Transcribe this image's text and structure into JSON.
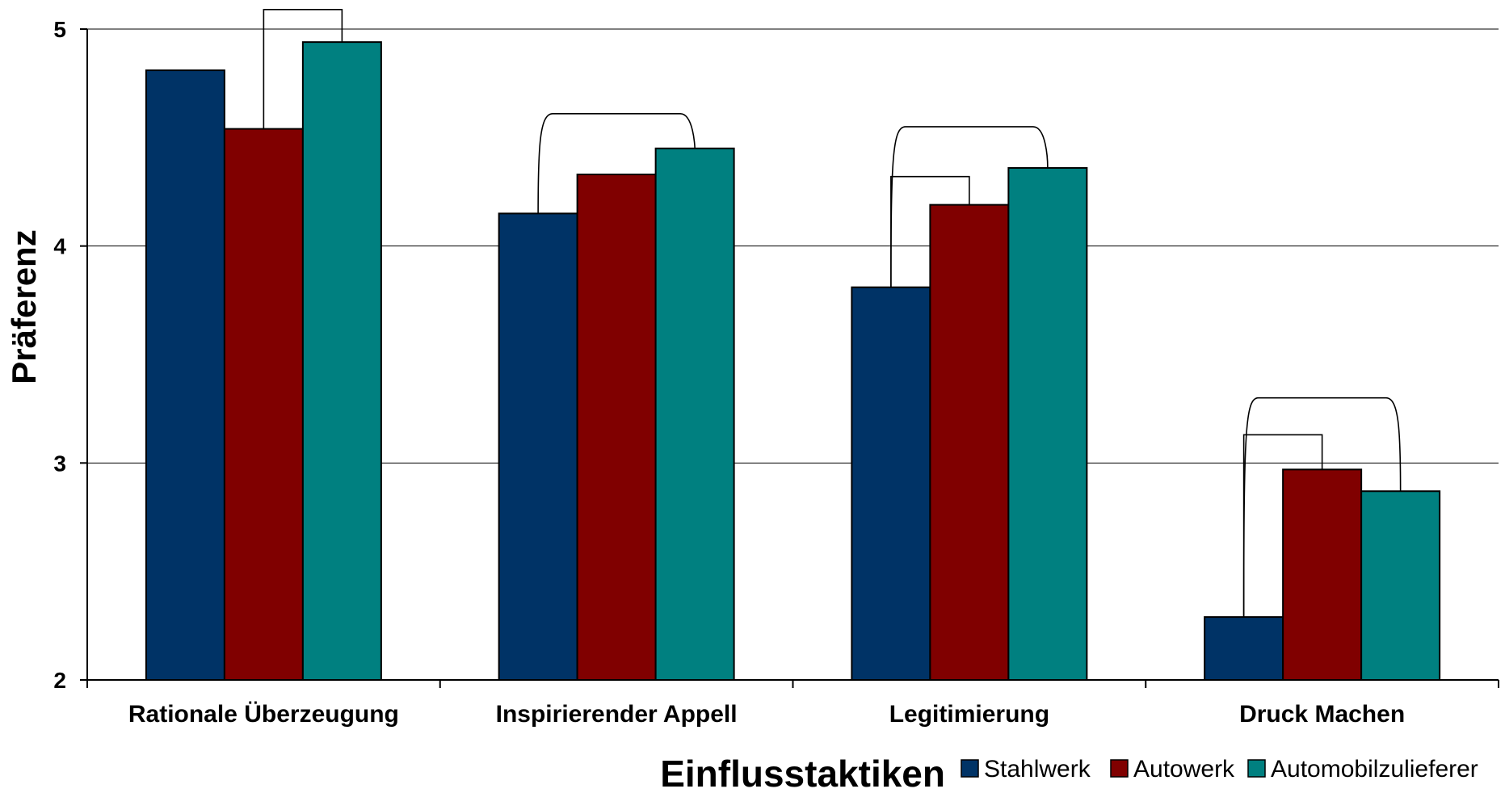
{
  "chart_data": {
    "type": "bar",
    "title": "",
    "xlabel": "Einflusstaktiken",
    "ylabel": "Präferenz",
    "ylim": [
      2,
      5
    ],
    "yticks": [
      "2",
      "3",
      "4",
      "5"
    ],
    "grid": true,
    "legend_position": "bottom-right",
    "categories": [
      "Rationale Überzeugung",
      "Inspirierender Appell",
      "Legitimierung",
      "Druck Machen"
    ],
    "series": [
      {
        "name": "Stahlwerk",
        "color": "#003366",
        "values": [
          4.81,
          4.15,
          3.81,
          2.29
        ]
      },
      {
        "name": "Autowerk",
        "color": "#800000",
        "values": [
          4.54,
          4.33,
          4.19,
          2.97
        ]
      },
      {
        "name": "Automobilzulieferer",
        "color": "#008080",
        "values": [
          4.94,
          4.45,
          4.36,
          2.87
        ]
      }
    ],
    "significance_brackets": [
      {
        "category": 0,
        "from_series": 1,
        "to_series": 2,
        "level": 5.09
      },
      {
        "category": 1,
        "from_series": 0,
        "to_series": 2,
        "level": 4.61
      },
      {
        "category": 2,
        "from_series": 0,
        "to_series": 1,
        "level": 4.32
      },
      {
        "category": 2,
        "from_series": 0,
        "to_series": 2,
        "level": 4.55
      },
      {
        "category": 3,
        "from_series": 0,
        "to_series": 1,
        "level": 3.13
      },
      {
        "category": 3,
        "from_series": 0,
        "to_series": 2,
        "level": 3.3
      }
    ]
  }
}
